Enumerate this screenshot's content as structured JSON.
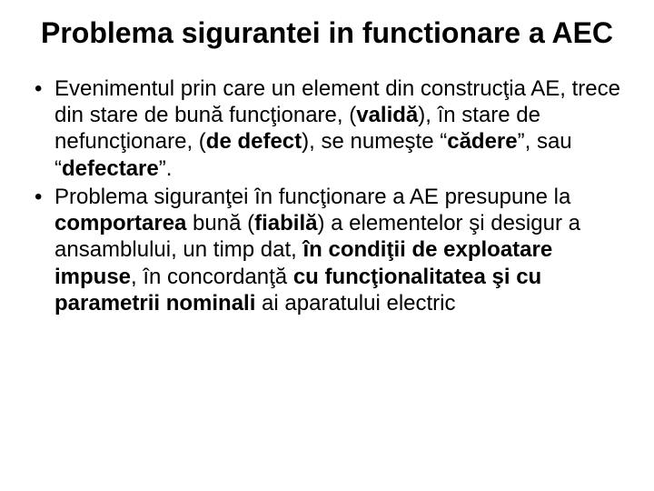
{
  "title": "Problema sigurantei in functionare a AEC",
  "title_fontsize": 32,
  "title_fontweight": "bold",
  "body_fontsize": 24,
  "text_color": "#000000",
  "background_color": "#ffffff",
  "bullets": [
    {
      "segments": [
        {
          "text": "Evenimentul prin care un element din construcţia AE, trece din stare de bună funcţionare, (",
          "bold": false
        },
        {
          "text": "validă",
          "bold": true
        },
        {
          "text": "), în stare de nefuncţionare, (",
          "bold": false
        },
        {
          "text": "de defect",
          "bold": true
        },
        {
          "text": "), se numeşte “",
          "bold": false
        },
        {
          "text": "cădere",
          "bold": true
        },
        {
          "text": "”, sau “",
          "bold": false
        },
        {
          "text": "defectare",
          "bold": true
        },
        {
          "text": "”.",
          "bold": false
        }
      ]
    },
    {
      "segments": [
        {
          "text": "Problema siguranţei în funcţionare a AE presupune la ",
          "bold": false
        },
        {
          "text": "comportarea",
          "bold": true
        },
        {
          "text": " bună (",
          "bold": false
        },
        {
          "text": "fiabilă",
          "bold": true
        },
        {
          "text": ") a elementelor şi desigur a ansamblului, un timp dat, ",
          "bold": false
        },
        {
          "text": "în condiţii de exploatare impuse",
          "bold": true
        },
        {
          "text": ", în concordanţă ",
          "bold": false
        },
        {
          "text": "cu funcţionalitatea  şi cu parametrii nominali",
          "bold": true
        },
        {
          "text": " ai aparatului electric",
          "bold": false
        }
      ]
    }
  ]
}
